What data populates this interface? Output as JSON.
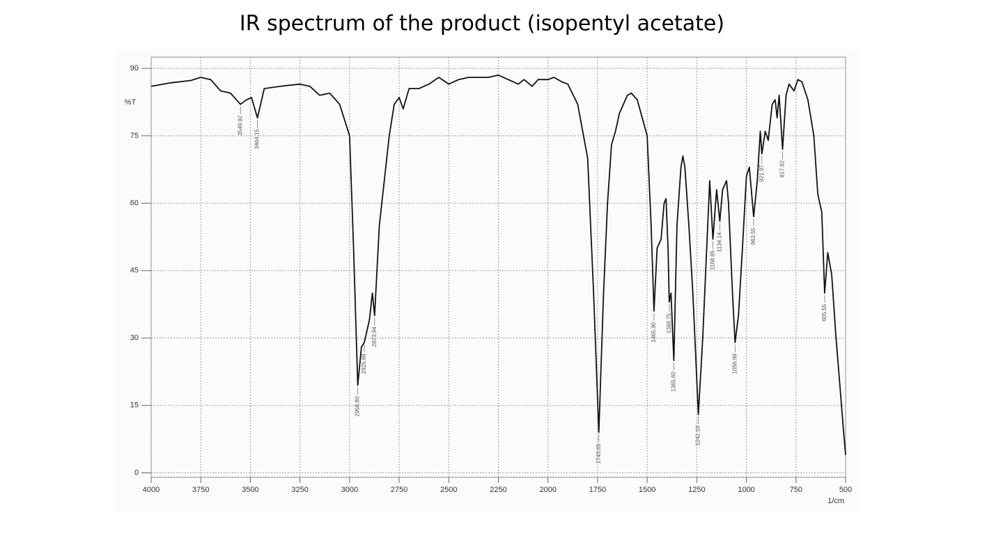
{
  "chart_data": {
    "type": "line",
    "title": "IR spectrum of the product (isopentyl acetate)",
    "y_label": "%T",
    "x_label": "1/cm",
    "color": "#111111",
    "grid": true,
    "xlim": [
      4000,
      500
    ],
    "ylim": [
      -1,
      92.5
    ],
    "xticks": [
      4000,
      3750,
      3500,
      3250,
      3000,
      2750,
      2500,
      2250,
      2000,
      1750,
      1500,
      1250,
      1000,
      750,
      500
    ],
    "yticks": [
      0,
      15,
      30,
      45,
      60,
      75,
      90
    ],
    "x": [
      4000,
      3900,
      3800,
      3750,
      3700,
      3650,
      3600,
      3549.92,
      3520,
      3494,
      3464.15,
      3430,
      3350,
      3250,
      3200,
      3150,
      3100,
      3050,
      3000,
      2980,
      2958.8,
      2940,
      2925.66,
      2900,
      2885,
      2873.94,
      2850,
      2800,
      2775,
      2750,
      2730,
      2700,
      2650,
      2600,
      2550,
      2500,
      2450,
      2400,
      2300,
      2250,
      2200,
      2150,
      2120,
      2080,
      2050,
      2000,
      1970,
      1930,
      1900,
      1850,
      1800,
      1770,
      1743.65,
      1720,
      1700,
      1680,
      1660,
      1640,
      1600,
      1580,
      1550,
      1500,
      1480,
      1465.9,
      1450,
      1430,
      1415,
      1405,
      1395,
      1388.75,
      1380,
      1365.6,
      1350,
      1330,
      1320,
      1310,
      1290,
      1270,
      1242.16,
      1220,
      1200,
      1185,
      1168.85,
      1150,
      1134.14,
      1120,
      1100,
      1090,
      1070,
      1056.99,
      1040,
      1020,
      1000,
      985,
      963.55,
      945,
      930,
      921.97,
      905,
      890,
      870,
      855,
      845,
      835,
      817.82,
      800,
      785,
      760,
      740,
      720,
      690,
      660,
      640,
      620,
      605.55,
      590,
      570,
      550,
      530,
      510,
      500
    ],
    "values": [
      86,
      86.8,
      87.3,
      88,
      87.5,
      85,
      84.5,
      82,
      83,
      83.5,
      79,
      85.5,
      86,
      86.5,
      86,
      84,
      84.5,
      82,
      75,
      50,
      19.5,
      28,
      29,
      34,
      40,
      35,
      55,
      75,
      82,
      83.5,
      81,
      85.5,
      85.5,
      86.5,
      88,
      86.5,
      87.5,
      88,
      88,
      88.5,
      87.5,
      86.5,
      87.5,
      86,
      87.5,
      87.5,
      88,
      87,
      86.5,
      82,
      70,
      40,
      9,
      40,
      60,
      73,
      76,
      80,
      84,
      84.5,
      83,
      75,
      55,
      36,
      50,
      52,
      60,
      61,
      50,
      38,
      40,
      25,
      55,
      68,
      70.5,
      68,
      55,
      40,
      13,
      30,
      50,
      65,
      52,
      63,
      56,
      63,
      65,
      60,
      40,
      29,
      35,
      50,
      66,
      68,
      57,
      65,
      76,
      71,
      76,
      74,
      82,
      83,
      79,
      84,
      72,
      84,
      86.5,
      85,
      87.5,
      87,
      83,
      75,
      62,
      58,
      40,
      49,
      44,
      31,
      20,
      9,
      4
    ],
    "peaks": [
      {
        "value": 3549.92,
        "label": "3549.92"
      },
      {
        "value": 3464.15,
        "label": "3464.15"
      },
      {
        "value": 2958.8,
        "label": "2958.80"
      },
      {
        "value": 2925.66,
        "label": "2925.66"
      },
      {
        "value": 2873.94,
        "label": "2873.94"
      },
      {
        "value": 1743.65,
        "label": "1743.65"
      },
      {
        "value": 1465.9,
        "label": "1465.90"
      },
      {
        "value": 1388.75,
        "label": "1388.75"
      },
      {
        "value": 1365.6,
        "label": "1365.60"
      },
      {
        "value": 1242.16,
        "label": "1242.16"
      },
      {
        "value": 1168.85,
        "label": "1168.85"
      },
      {
        "value": 1134.14,
        "label": "1134.14"
      },
      {
        "value": 1056.99,
        "label": "1056.99"
      },
      {
        "value": 963.55,
        "label": "963.55"
      },
      {
        "value": 921.97,
        "label": "921.97"
      },
      {
        "value": 817.82,
        "label": "817.82"
      },
      {
        "value": 605.55,
        "label": "605.55"
      }
    ]
  }
}
